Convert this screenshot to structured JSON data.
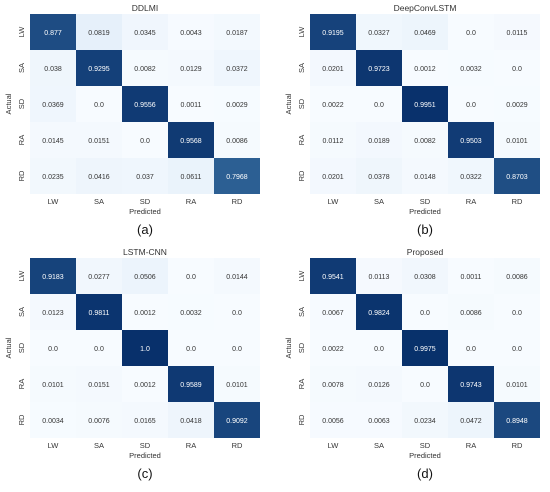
{
  "chart_data": [
    {
      "type": "heatmap",
      "title": "DDLMI",
      "caption": "(a)",
      "xlabel": "Predicted",
      "ylabel": "Actual",
      "x_categories": [
        "LW",
        "SA",
        "SD",
        "RA",
        "RD"
      ],
      "y_categories": [
        "LW",
        "SA",
        "SD",
        "RA",
        "RD"
      ],
      "values": [
        [
          "0.877",
          "0.0819",
          "0.0345",
          "0.0043",
          "0.0187"
        ],
        [
          "0.038",
          "0.9295",
          "0.0082",
          "0.0129",
          "0.0372"
        ],
        [
          "0.0369",
          "0.0",
          "0.9556",
          "0.0011",
          "0.0029"
        ],
        [
          "0.0145",
          "0.0151",
          "0.0",
          "0.9568",
          "0.0086"
        ],
        [
          "0.0235",
          "0.0416",
          "0.037",
          "0.0611",
          "0.7968"
        ]
      ]
    },
    {
      "type": "heatmap",
      "title": "DeepConvLSTM",
      "caption": "(b)",
      "xlabel": "Predicted",
      "ylabel": "Actual",
      "x_categories": [
        "LW",
        "SA",
        "SD",
        "RA",
        "RD"
      ],
      "y_categories": [
        "LW",
        "SA",
        "SD",
        "RA",
        "RD"
      ],
      "values": [
        [
          "0.9195",
          "0.0327",
          "0.0469",
          "0.0",
          "0.0115"
        ],
        [
          "0.0201",
          "0.9723",
          "0.0012",
          "0.0032",
          "0.0"
        ],
        [
          "0.0022",
          "0.0",
          "0.9951",
          "0.0",
          "0.0029"
        ],
        [
          "0.0112",
          "0.0189",
          "0.0082",
          "0.9503",
          "0.0101"
        ],
        [
          "0.0201",
          "0.0378",
          "0.0148",
          "0.0322",
          "0.8703"
        ]
      ]
    },
    {
      "type": "heatmap",
      "title": "LSTM-CNN",
      "caption": "(c)",
      "xlabel": "Predicted",
      "ylabel": "Actual",
      "x_categories": [
        "LW",
        "SA",
        "SD",
        "RA",
        "RD"
      ],
      "y_categories": [
        "LW",
        "SA",
        "SD",
        "RA",
        "RD"
      ],
      "values": [
        [
          "0.9183",
          "0.0277",
          "0.0506",
          "0.0",
          "0.0144"
        ],
        [
          "0.0123",
          "0.9811",
          "0.0012",
          "0.0032",
          "0.0"
        ],
        [
          "0.0",
          "0.0",
          "1.0",
          "0.0",
          "0.0"
        ],
        [
          "0.0101",
          "0.0151",
          "0.0012",
          "0.9589",
          "0.0101"
        ],
        [
          "0.0034",
          "0.0076",
          "0.0165",
          "0.0418",
          "0.9092"
        ]
      ]
    },
    {
      "type": "heatmap",
      "title": "Proposed",
      "caption": "(d)",
      "xlabel": "Predicted",
      "ylabel": "Actual",
      "x_categories": [
        "LW",
        "SA",
        "SD",
        "RA",
        "RD"
      ],
      "y_categories": [
        "LW",
        "SA",
        "SD",
        "RA",
        "RD"
      ],
      "values": [
        [
          "0.9541",
          "0.0113",
          "0.0308",
          "0.0011",
          "0.0086"
        ],
        [
          "0.0067",
          "0.9824",
          "0.0",
          "0.0086",
          "0.0"
        ],
        [
          "0.0022",
          "0.0",
          "0.9975",
          "0.0",
          "0.0"
        ],
        [
          "0.0078",
          "0.0126",
          "0.0",
          "0.9743",
          "0.0101"
        ],
        [
          "0.0056",
          "0.0063",
          "0.0234",
          "0.0472",
          "0.8948"
        ]
      ]
    }
  ],
  "colors": {
    "low": "#f7fbff",
    "mid": "#6aaed6",
    "high": "#08306b",
    "text_dark": "#333333",
    "text_light": "#ffffff"
  }
}
